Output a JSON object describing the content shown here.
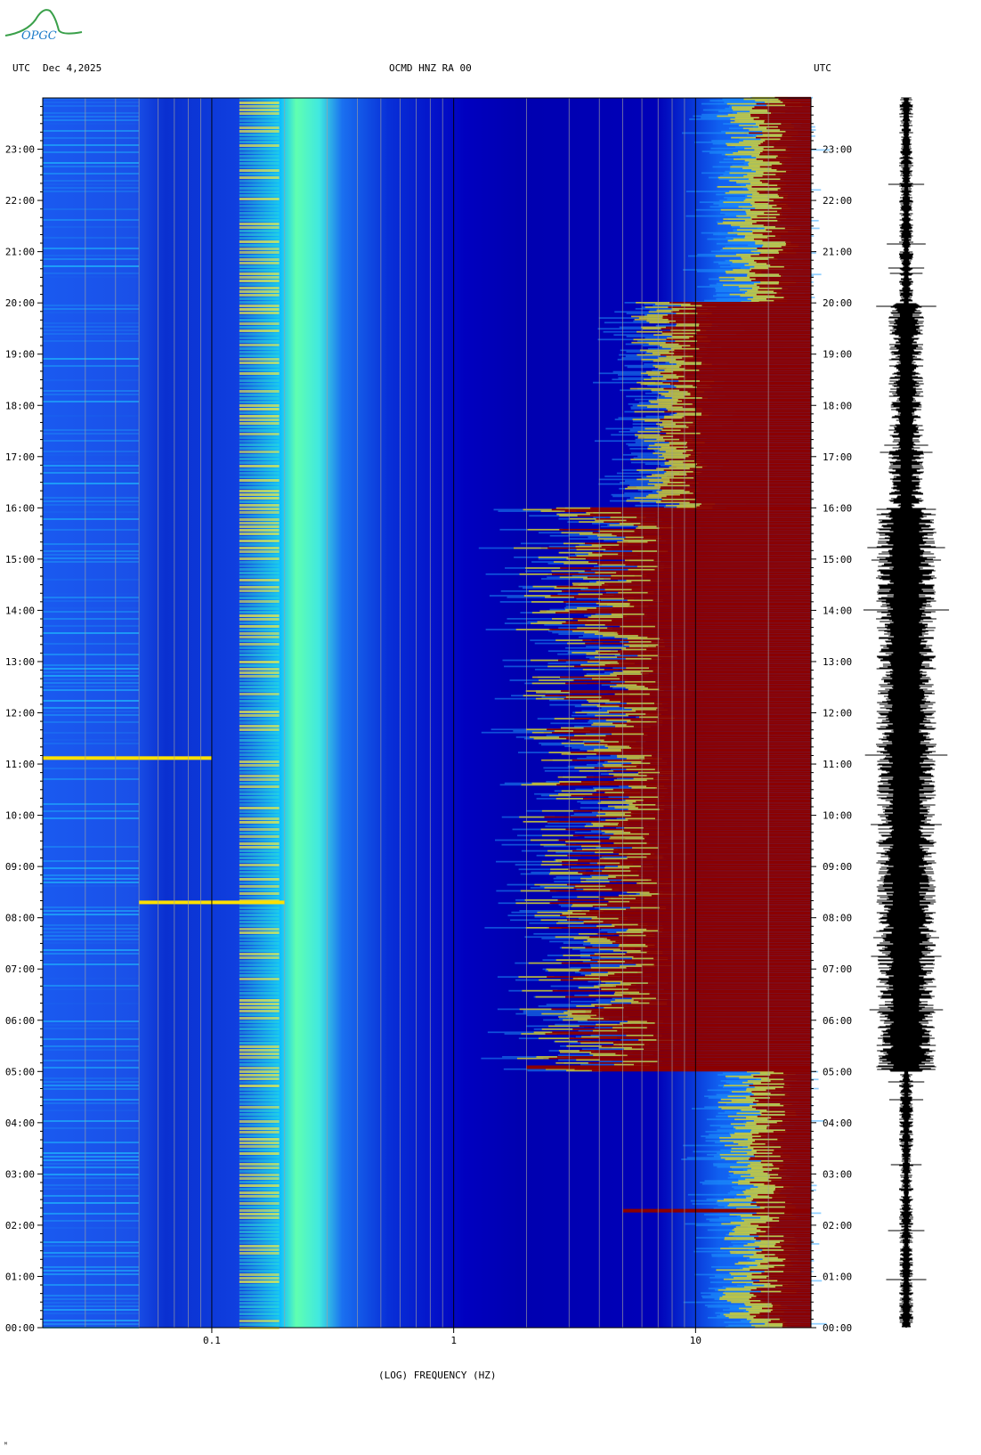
{
  "header": {
    "left_utc": "UTC",
    "date": "Dec 4,2025",
    "station": "OCMD HNZ RA 00",
    "right_utc": "UTC"
  },
  "logo": {
    "text": "OPGC"
  },
  "footer": {
    "mark": "ᴹ"
  },
  "colors": {
    "low": "#0000b4",
    "mid": "#00c8ff",
    "yellow": "#ffe000",
    "high": "#8b0000",
    "grid": "#a0a0a0",
    "axis": "#000000"
  },
  "chart_data": {
    "type": "heatmap",
    "title": "OCMD HNZ RA 00",
    "xlabel": "(LOG) FREQUENCY (HZ)",
    "ylabel": "UTC",
    "x_scale": "log",
    "xlim": [
      0.02,
      30
    ],
    "x_ticks": [
      {
        "value": 0.1,
        "label": "0.1"
      },
      {
        "value": 1,
        "label": "1"
      },
      {
        "value": 10,
        "label": "10"
      }
    ],
    "y_ticks": [
      "00:00",
      "01:00",
      "02:00",
      "03:00",
      "04:00",
      "05:00",
      "06:00",
      "07:00",
      "08:00",
      "09:00",
      "10:00",
      "11:00",
      "12:00",
      "13:00",
      "14:00",
      "15:00",
      "16:00",
      "17:00",
      "18:00",
      "19:00",
      "20:00",
      "21:00",
      "22:00",
      "23:00"
    ],
    "ylim_hours": [
      0,
      24
    ],
    "features": [
      {
        "name": "microseism band",
        "freq_low": 0.12,
        "freq_high": 0.2,
        "level": "cyan-yellow"
      },
      {
        "name": "anthropogenic noise",
        "time_start": "05:00",
        "time_end": "16:00",
        "freq_low": 1.5,
        "freq_high": 30,
        "level": "high"
      },
      {
        "name": "evening noise",
        "time_start": "16:00",
        "time_end": "20:00",
        "freq_low": 6,
        "freq_high": 30,
        "level": "high"
      },
      {
        "name": "event",
        "time": "05:05",
        "freq_low": 2,
        "freq_high": 30
      },
      {
        "name": "event",
        "time": "08:18",
        "freq_low": 0.05,
        "freq_high": 0.2
      },
      {
        "name": "event",
        "time": "11:07",
        "freq_low": 0.02,
        "freq_high": 0.1
      },
      {
        "name": "event",
        "time": "02:17",
        "freq_low": 5,
        "freq_high": 30
      }
    ],
    "seismogram": {
      "time_start": "00:00",
      "time_end": "24:00",
      "peak_activity": "05:00-16:00"
    }
  }
}
